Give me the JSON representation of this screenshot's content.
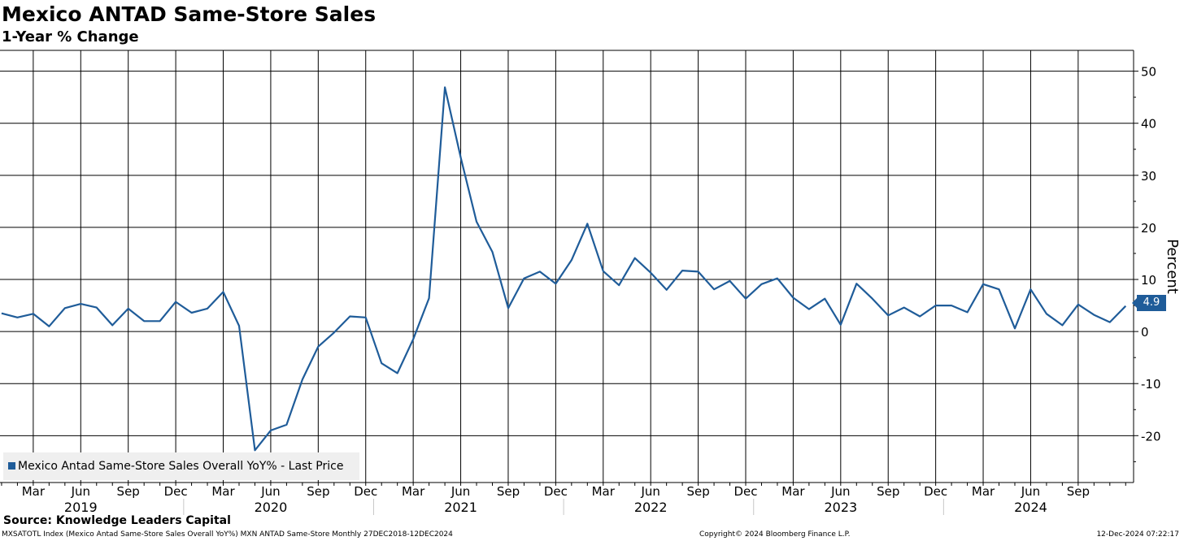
{
  "header": {
    "title": "Mexico ANTAD Same-Store Sales",
    "subtitle": "1-Year % Change"
  },
  "footer": {
    "source": "Source: Knowledge Leaders Capital",
    "ticker_info": "MXSATOTL Index (Mexico Antad Same-Store Sales Overall YoY%) MXN ANTAD Same-Store  Monthly 27DEC2018-12DEC2024",
    "copyright": "Copyright© 2024 Bloomberg Finance L.P.",
    "timestamp": "12-Dec-2024 07:22:17"
  },
  "colors": {
    "line": "#1f5c99",
    "grid": "#000000",
    "legend_bg": "#efefef"
  },
  "chart_data": {
    "type": "line",
    "title": "Mexico ANTAD Same-Store Sales",
    "subtitle": "1-Year % Change",
    "ylabel": "Percent",
    "ylim": [
      -29,
      54
    ],
    "yticks": [
      -20,
      -10,
      0,
      10,
      20,
      30,
      40,
      50
    ],
    "ytick_labels": [
      "-20",
      "-10",
      "0",
      "10",
      "20",
      "30",
      "40",
      "50"
    ],
    "x_start_month_index": 0,
    "x_month_range": [
      -0.1,
      71.5
    ],
    "month_ticks": [
      {
        "index": 2,
        "label": "Mar"
      },
      {
        "index": 5,
        "label": "Jun"
      },
      {
        "index": 8,
        "label": "Sep"
      },
      {
        "index": 11,
        "label": "Dec"
      },
      {
        "index": 14,
        "label": "Mar"
      },
      {
        "index": 17,
        "label": "Jun"
      },
      {
        "index": 20,
        "label": "Sep"
      },
      {
        "index": 23,
        "label": "Dec"
      },
      {
        "index": 26,
        "label": "Mar"
      },
      {
        "index": 29,
        "label": "Jun"
      },
      {
        "index": 32,
        "label": "Sep"
      },
      {
        "index": 35,
        "label": "Dec"
      },
      {
        "index": 38,
        "label": "Mar"
      },
      {
        "index": 41,
        "label": "Jun"
      },
      {
        "index": 44,
        "label": "Sep"
      },
      {
        "index": 47,
        "label": "Dec"
      },
      {
        "index": 50,
        "label": "Mar"
      },
      {
        "index": 53,
        "label": "Jun"
      },
      {
        "index": 56,
        "label": "Sep"
      },
      {
        "index": 59,
        "label": "Dec"
      },
      {
        "index": 62,
        "label": "Mar"
      },
      {
        "index": 65,
        "label": "Jun"
      },
      {
        "index": 68,
        "label": "Sep"
      }
    ],
    "year_labels": [
      {
        "index": 5,
        "label": "2019"
      },
      {
        "index": 17,
        "label": "2020"
      },
      {
        "index": 29,
        "label": "2021"
      },
      {
        "index": 41,
        "label": "2022"
      },
      {
        "index": 53,
        "label": "2023"
      },
      {
        "index": 65,
        "label": "2024"
      }
    ],
    "year_separators": [
      11.5,
      23.5,
      35.5,
      47.5,
      59.5
    ],
    "series": [
      {
        "name": "Mexico Antad Same-Store Sales Overall YoY% - Last Price",
        "start": "2019-01",
        "values": [
          3.5,
          2.7,
          3.4,
          1.0,
          4.5,
          5.3,
          4.6,
          1.2,
          4.4,
          2.0,
          2.0,
          5.7,
          3.6,
          4.4,
          7.6,
          1.1,
          -22.8,
          -19.0,
          -17.9,
          -9.2,
          -2.9,
          -0.2,
          2.9,
          2.7,
          -6.1,
          -8.0,
          -1.5,
          6.4,
          46.9,
          33.4,
          21.1,
          15.3,
          4.5,
          10.2,
          11.5,
          9.2,
          13.7,
          20.7,
          11.6,
          8.9,
          14.1,
          11.3,
          8.0,
          11.7,
          11.5,
          8.1,
          9.7,
          6.3,
          9.1,
          10.2,
          6.5,
          4.3,
          6.3,
          1.3,
          9.2,
          6.3,
          3.1,
          4.6,
          2.9,
          5.0,
          5.0,
          3.7,
          9.1,
          8.1,
          0.6,
          8.1,
          3.4,
          1.2,
          5.2,
          3.2,
          1.8,
          4.9
        ]
      }
    ],
    "last_value_label": "4.9",
    "legend_label": "Mexico Antad Same-Store Sales Overall YoY% - Last Price"
  }
}
